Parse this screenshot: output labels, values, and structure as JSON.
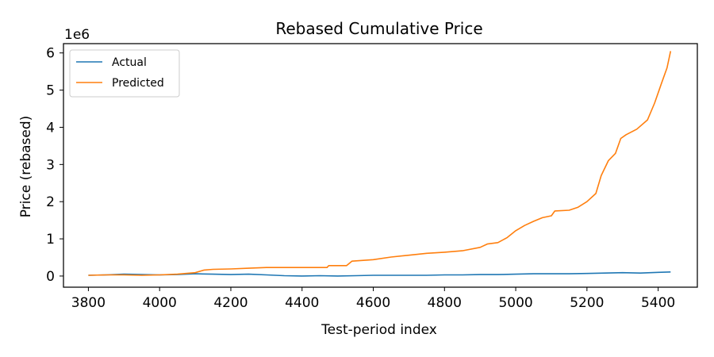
{
  "chart_data": {
    "type": "line",
    "title": "Rebased Cumulative Price",
    "xlabel": "Test-period index",
    "ylabel": "Price (rebased)",
    "y_offset_label": "1e6",
    "xlim": [
      3730,
      5510
    ],
    "ylim": [
      -0.3,
      6.25
    ],
    "y_scale_multiplier": 1000000,
    "x_ticks": [
      3800,
      4000,
      4200,
      4400,
      4600,
      4800,
      5000,
      5200,
      5400
    ],
    "y_ticks": [
      0,
      1,
      2,
      3,
      4,
      5,
      6
    ],
    "grid": false,
    "legend_position": "upper-left",
    "series": [
      {
        "name": "Actual",
        "color": "#1f77b4",
        "points": [
          [
            3800,
            0.02
          ],
          [
            3850,
            0.03
          ],
          [
            3900,
            0.05
          ],
          [
            3950,
            0.04
          ],
          [
            4000,
            0.03
          ],
          [
            4050,
            0.04
          ],
          [
            4100,
            0.06
          ],
          [
            4150,
            0.05
          ],
          [
            4200,
            0.04
          ],
          [
            4250,
            0.05
          ],
          [
            4300,
            0.03
          ],
          [
            4350,
            0.01
          ],
          [
            4400,
            0.0
          ],
          [
            4450,
            0.01
          ],
          [
            4500,
            0.0
          ],
          [
            4550,
            0.01
          ],
          [
            4600,
            0.02
          ],
          [
            4650,
            0.02
          ],
          [
            4700,
            0.02
          ],
          [
            4750,
            0.02
          ],
          [
            4800,
            0.03
          ],
          [
            4850,
            0.03
          ],
          [
            4900,
            0.04
          ],
          [
            4950,
            0.04
          ],
          [
            5000,
            0.05
          ],
          [
            5050,
            0.06
          ],
          [
            5100,
            0.06
          ],
          [
            5150,
            0.06
          ],
          [
            5200,
            0.07
          ],
          [
            5250,
            0.08
          ],
          [
            5300,
            0.09
          ],
          [
            5350,
            0.08
          ],
          [
            5400,
            0.1
          ],
          [
            5435,
            0.11
          ]
        ]
      },
      {
        "name": "Predicted",
        "color": "#ff7f0e",
        "points": [
          [
            3800,
            0.02
          ],
          [
            3850,
            0.03
          ],
          [
            3900,
            0.03
          ],
          [
            3950,
            0.02
          ],
          [
            4000,
            0.03
          ],
          [
            4050,
            0.05
          ],
          [
            4100,
            0.09
          ],
          [
            4125,
            0.16
          ],
          [
            4150,
            0.18
          ],
          [
            4200,
            0.19
          ],
          [
            4250,
            0.21
          ],
          [
            4300,
            0.23
          ],
          [
            4350,
            0.23
          ],
          [
            4400,
            0.23
          ],
          [
            4470,
            0.23
          ],
          [
            4475,
            0.28
          ],
          [
            4500,
            0.28
          ],
          [
            4525,
            0.28
          ],
          [
            4540,
            0.4
          ],
          [
            4600,
            0.44
          ],
          [
            4650,
            0.51
          ],
          [
            4700,
            0.56
          ],
          [
            4750,
            0.61
          ],
          [
            4800,
            0.64
          ],
          [
            4850,
            0.68
          ],
          [
            4900,
            0.77
          ],
          [
            4920,
            0.86
          ],
          [
            4950,
            0.9
          ],
          [
            4975,
            1.03
          ],
          [
            5000,
            1.22
          ],
          [
            5025,
            1.36
          ],
          [
            5050,
            1.47
          ],
          [
            5075,
            1.57
          ],
          [
            5100,
            1.62
          ],
          [
            5110,
            1.75
          ],
          [
            5150,
            1.77
          ],
          [
            5175,
            1.85
          ],
          [
            5200,
            2.0
          ],
          [
            5225,
            2.22
          ],
          [
            5240,
            2.7
          ],
          [
            5260,
            3.1
          ],
          [
            5280,
            3.3
          ],
          [
            5295,
            3.7
          ],
          [
            5310,
            3.8
          ],
          [
            5340,
            3.95
          ],
          [
            5370,
            4.2
          ],
          [
            5390,
            4.65
          ],
          [
            5410,
            5.2
          ],
          [
            5425,
            5.6
          ],
          [
            5435,
            6.05
          ]
        ]
      }
    ]
  }
}
